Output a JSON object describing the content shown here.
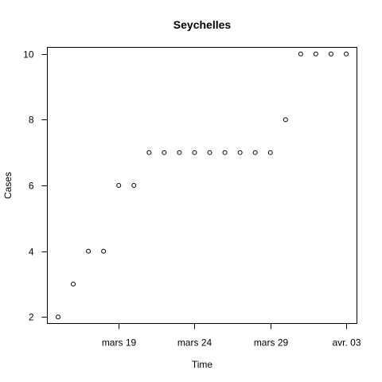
{
  "chart_data": {
    "type": "scatter",
    "title": "Seychelles",
    "xlabel": "Time",
    "ylabel": "Cases",
    "x_ticks": [
      "mars 19",
      "mars 24",
      "mars 29",
      "avr. 03"
    ],
    "y_ticks": [
      "2",
      "4",
      "6",
      "8",
      "10"
    ],
    "ylim": [
      1.8,
      10.2
    ],
    "grid": false,
    "legend": "none",
    "series": [
      {
        "x": [
          "2020-03-15",
          "2020-03-16",
          "2020-03-17",
          "2020-03-18",
          "2020-03-19",
          "2020-03-20",
          "2020-03-21",
          "2020-03-22",
          "2020-03-23",
          "2020-03-24",
          "2020-03-25",
          "2020-03-26",
          "2020-03-27",
          "2020-03-28",
          "2020-03-29",
          "2020-03-30",
          "2020-03-31",
          "2020-04-01",
          "2020-04-02",
          "2020-04-03"
        ],
        "values": [
          2,
          3,
          4,
          4,
          6,
          6,
          7,
          7,
          7,
          7,
          7,
          7,
          7,
          7,
          7,
          8,
          10,
          10,
          10,
          10
        ]
      }
    ]
  }
}
